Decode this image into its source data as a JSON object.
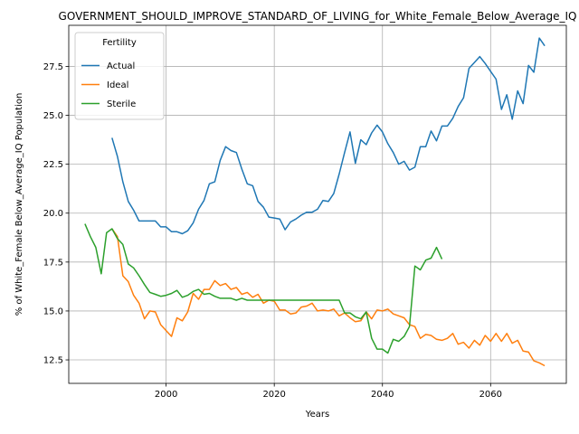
{
  "chart_data": {
    "type": "line",
    "title": "GOVERNMENT_SHOULD_IMPROVE_STANDARD_OF_LIVING_for_White_Female_Below_Average_IQ",
    "xlabel": "Years",
    "ylabel": "% of White_Female Below_Average_IQ Population",
    "xlim": [
      1982,
      2074
    ],
    "ylim": [
      11.3,
      29.6
    ],
    "x_ticks": [
      2000,
      2020,
      2040,
      2060
    ],
    "x_tick_labels": [
      "2000",
      "2020",
      "2040",
      "2060"
    ],
    "y_ticks": [
      12.5,
      15.0,
      17.5,
      20.0,
      22.5,
      25.0,
      27.5
    ],
    "y_tick_labels": [
      "12.5",
      "15.0",
      "17.5",
      "20.0",
      "22.5",
      "25.0",
      "27.5"
    ],
    "grid": true,
    "legend": {
      "title": "Fertility",
      "placement": "top-left"
    },
    "series": [
      {
        "name": "Actual",
        "color": "#1f77b4",
        "x": [
          1990,
          1991,
          1992,
          1993,
          1994,
          1995,
          1996,
          1997,
          1998,
          1999,
          2000,
          2001,
          2002,
          2003,
          2004,
          2005,
          2006,
          2007,
          2008,
          2009,
          2010,
          2011,
          2012,
          2013,
          2014,
          2015,
          2016,
          2017,
          2018,
          2019,
          2020,
          2021,
          2022,
          2023,
          2024,
          2025,
          2026,
          2027,
          2028,
          2029,
          2030,
          2031,
          2032,
          2033,
          2034,
          2035,
          2036,
          2037,
          2038,
          2039,
          2040,
          2041,
          2042,
          2043,
          2044,
          2045,
          2046,
          2047,
          2048,
          2049,
          2050,
          2051,
          2052,
          2053,
          2054,
          2055,
          2056,
          2057,
          2058,
          2059,
          2060,
          2061,
          2062,
          2063,
          2064,
          2065,
          2066,
          2067,
          2068,
          2069,
          2070
        ],
        "y": [
          23.85,
          22.9,
          21.6,
          20.6,
          20.15,
          19.6,
          19.6,
          19.6,
          19.6,
          19.3,
          19.3,
          19.05,
          19.05,
          18.95,
          19.1,
          19.5,
          20.2,
          20.65,
          21.5,
          21.6,
          22.7,
          23.4,
          23.2,
          23.1,
          22.25,
          21.5,
          21.4,
          20.6,
          20.3,
          19.8,
          19.75,
          19.7,
          19.15,
          19.55,
          19.7,
          19.9,
          20.05,
          20.05,
          20.2,
          20.65,
          20.6,
          21.0,
          22.0,
          23.1,
          24.15,
          22.55,
          23.75,
          23.5,
          24.1,
          24.5,
          24.15,
          23.55,
          23.1,
          22.5,
          22.65,
          22.2,
          22.35,
          23.4,
          23.4,
          24.2,
          23.7,
          24.45,
          24.45,
          24.85,
          25.45,
          25.9,
          27.4,
          27.7,
          28.0,
          27.65,
          27.25,
          26.85,
          25.3,
          26.05,
          24.8,
          26.25,
          25.6,
          27.55,
          27.2,
          28.95,
          28.55
        ]
      },
      {
        "name": "Ideal",
        "color": "#ff7f0e",
        "x": [
          1990,
          1991,
          1992,
          1993,
          1994,
          1995,
          1996,
          1997,
          1998,
          1999,
          2000,
          2001,
          2002,
          2003,
          2004,
          2005,
          2006,
          2007,
          2008,
          2009,
          2010,
          2011,
          2012,
          2013,
          2014,
          2015,
          2016,
          2017,
          2018,
          2019,
          2020,
          2021,
          2022,
          2023,
          2024,
          2025,
          2026,
          2027,
          2028,
          2029,
          2030,
          2031,
          2032,
          2033,
          2034,
          2035,
          2036,
          2037,
          2038,
          2039,
          2040,
          2041,
          2042,
          2043,
          2044,
          2045,
          2046,
          2047,
          2048,
          2049,
          2050,
          2051,
          2052,
          2053,
          2054,
          2055,
          2056,
          2057,
          2058,
          2059,
          2060,
          2061,
          2062,
          2063,
          2064,
          2065,
          2066,
          2067,
          2068,
          2069,
          2070
        ],
        "y": [
          19.2,
          18.8,
          16.8,
          16.5,
          15.8,
          15.4,
          14.6,
          15.0,
          14.95,
          14.3,
          14.0,
          13.7,
          14.65,
          14.5,
          14.95,
          15.9,
          15.6,
          16.1,
          16.1,
          16.55,
          16.3,
          16.4,
          16.1,
          16.2,
          15.85,
          15.95,
          15.7,
          15.85,
          15.4,
          15.55,
          15.5,
          15.05,
          15.05,
          14.85,
          14.9,
          15.2,
          15.25,
          15.4,
          15.0,
          15.05,
          15.0,
          15.1,
          14.75,
          14.9,
          14.65,
          14.45,
          14.5,
          14.95,
          14.6,
          15.05,
          15.0,
          15.1,
          14.85,
          14.75,
          14.65,
          14.3,
          14.2,
          13.6,
          13.8,
          13.75,
          13.55,
          13.5,
          13.6,
          13.85,
          13.3,
          13.4,
          13.1,
          13.5,
          13.25,
          13.75,
          13.45,
          13.85,
          13.45,
          13.85,
          13.35,
          13.5,
          12.95,
          12.9,
          12.45,
          12.35,
          12.2
        ]
      },
      {
        "name": "Sterile",
        "color": "#2ca02c",
        "x": [
          1985,
          1986,
          1987,
          1988,
          1989,
          1990,
          1991,
          1992,
          1993,
          1994,
          1995,
          1996,
          1997,
          1998,
          1999,
          2000,
          2001,
          2002,
          2003,
          2004,
          2005,
          2006,
          2007,
          2008,
          2009,
          2010,
          2011,
          2012,
          2013,
          2014,
          2015,
          2016,
          2017,
          2018,
          2019,
          2020,
          2021,
          2022,
          2023,
          2024,
          2025,
          2026,
          2027,
          2028,
          2029,
          2030,
          2031,
          2032,
          2033,
          2034,
          2035,
          2036,
          2037,
          2038,
          2039,
          2040,
          2041,
          2042,
          2043,
          2044,
          2045,
          2046,
          2047,
          2048,
          2049,
          2050,
          2051
        ],
        "y": [
          19.45,
          18.8,
          18.25,
          16.9,
          19.0,
          19.2,
          18.7,
          18.4,
          17.4,
          17.2,
          16.8,
          16.35,
          15.95,
          15.85,
          15.75,
          15.8,
          15.9,
          16.05,
          15.7,
          15.8,
          16.0,
          16.1,
          15.85,
          15.9,
          15.75,
          15.65,
          15.65,
          15.65,
          15.55,
          15.65,
          15.55,
          15.55,
          15.55,
          15.55,
          15.55,
          15.55,
          15.55,
          15.55,
          15.55,
          15.55,
          15.55,
          15.55,
          15.55,
          15.55,
          15.55,
          15.55,
          15.55,
          15.55,
          14.9,
          14.9,
          14.7,
          14.6,
          14.95,
          13.6,
          13.05,
          13.05,
          12.85,
          13.55,
          13.45,
          13.7,
          14.2,
          17.3,
          17.1,
          17.6,
          17.7,
          18.25,
          17.65
        ]
      }
    ]
  }
}
